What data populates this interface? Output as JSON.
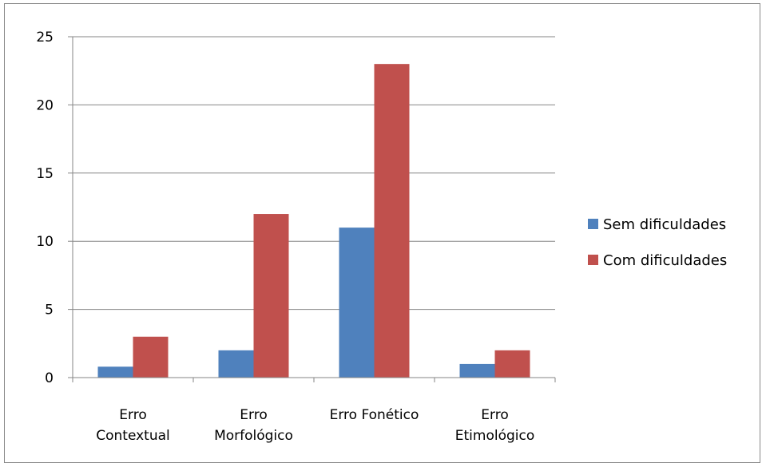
{
  "chart_data": {
    "type": "bar",
    "title": "",
    "xlabel": "",
    "ylabel": "",
    "categories": [
      [
        "Erro",
        "Contextual"
      ],
      [
        "Erro",
        "Morfológico"
      ],
      [
        "Erro Fonético"
      ],
      [
        "Erro",
        "Etimológico"
      ]
    ],
    "series": [
      {
        "name": "Sem dificuldades",
        "color": "#4f81bd",
        "values": [
          0.8,
          2,
          11,
          1
        ]
      },
      {
        "name": "Com dificuldades",
        "color": "#c0504d",
        "values": [
          3,
          12,
          23,
          2
        ]
      }
    ],
    "ylim": [
      0,
      25
    ],
    "yticks": [
      0,
      5,
      10,
      15,
      20,
      25
    ],
    "grid": true,
    "legend_position": "right"
  }
}
